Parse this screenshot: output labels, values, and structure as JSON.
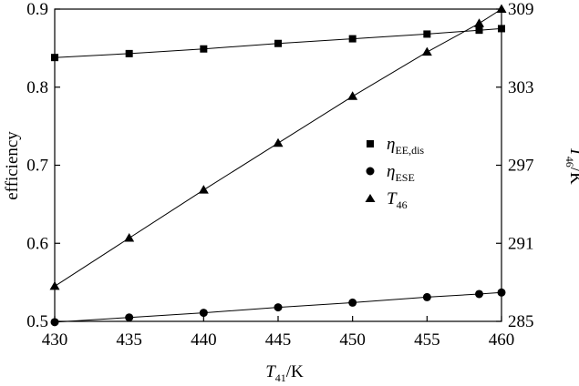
{
  "chart_data": {
    "type": "line",
    "x": [
      430,
      435,
      440,
      445,
      450,
      455,
      458.5,
      460
    ],
    "xlabel": "T41/K",
    "xlabel_parts": {
      "symbol": "T",
      "subscript": "41",
      "unit": "/K"
    },
    "xlim": [
      430,
      460
    ],
    "xticks": [
      430,
      435,
      440,
      445,
      450,
      455,
      460
    ],
    "ylabel_left": "efficiency",
    "ylim_left": [
      0.5,
      0.9
    ],
    "yticks_left": [
      0.5,
      0.6,
      0.7,
      0.8,
      0.9
    ],
    "ylabel_right": "T46/K",
    "ylabel_right_parts": {
      "symbol": "T",
      "subscript": "46",
      "unit": "/K"
    },
    "ylim_right": [
      285,
      309
    ],
    "yticks_right": [
      285,
      291,
      297,
      303,
      309
    ],
    "series": [
      {
        "name": "ηEE,dis",
        "name_parts": {
          "symbol": "η",
          "subscript": "EE,dis"
        },
        "axis": "left",
        "marker": "square",
        "values": [
          0.838,
          0.843,
          0.849,
          0.856,
          0.862,
          0.868,
          0.873,
          0.875
        ]
      },
      {
        "name": "ηESE",
        "name_parts": {
          "symbol": "η",
          "subscript": "ESE"
        },
        "axis": "left",
        "marker": "circle",
        "values": [
          0.499,
          0.505,
          0.511,
          0.518,
          0.524,
          0.531,
          0.535,
          0.537
        ]
      },
      {
        "name": "T46",
        "name_parts": {
          "symbol": "T",
          "subscript": "46"
        },
        "axis": "right",
        "marker": "triangle",
        "values": [
          287.7,
          291.4,
          295.1,
          298.7,
          302.3,
          305.7,
          307.9,
          309.0
        ]
      }
    ],
    "legend_position": "middle-right",
    "grid": false,
    "colors": {
      "ink": "#000000",
      "background": "#ffffff"
    }
  }
}
